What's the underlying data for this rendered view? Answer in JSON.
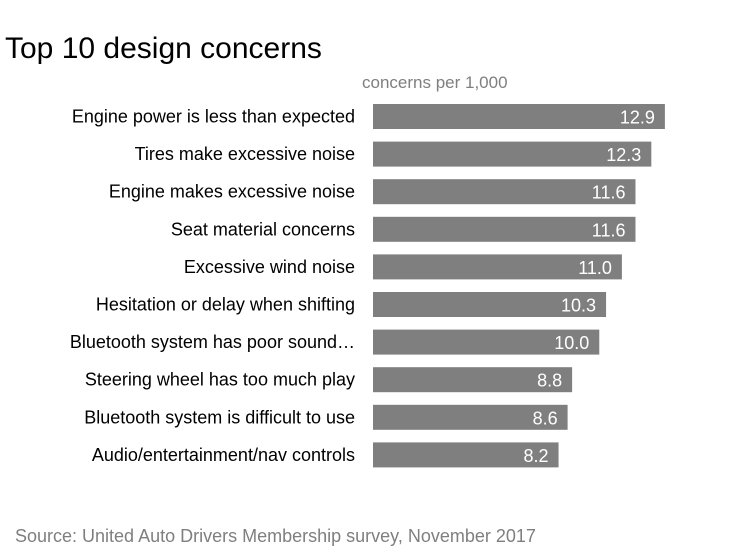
{
  "chart_data": {
    "type": "bar",
    "orientation": "horizontal",
    "title": "Top 10 design concerns",
    "unit_label": "concerns per 1,000",
    "categories": [
      "Engine power is less than expected",
      "Tires make excessive noise",
      "Engine makes excessive noise",
      "Seat material concerns",
      "Excessive wind noise",
      "Hesitation or delay when shifting",
      "Bluetooth system has poor sound…",
      "Steering wheel has too much play",
      "Bluetooth system is difficult to use",
      "Audio/entertainment/nav controls"
    ],
    "values": [
      12.9,
      12.3,
      11.6,
      11.6,
      11.0,
      10.3,
      10.0,
      8.8,
      8.6,
      8.2
    ],
    "data_labels": [
      "12.9",
      "12.3",
      "11.6",
      "11.6",
      "11.0",
      "10.3",
      "10.0",
      "8.8",
      "8.6",
      "8.2"
    ],
    "xlim": [
      0,
      13.7
    ],
    "grid": false,
    "legend": "none",
    "bar_color": "#7f7f7f",
    "data_label_color": "#ffffff",
    "source": "Source: United Auto Drivers Membership survey, November 2017"
  }
}
